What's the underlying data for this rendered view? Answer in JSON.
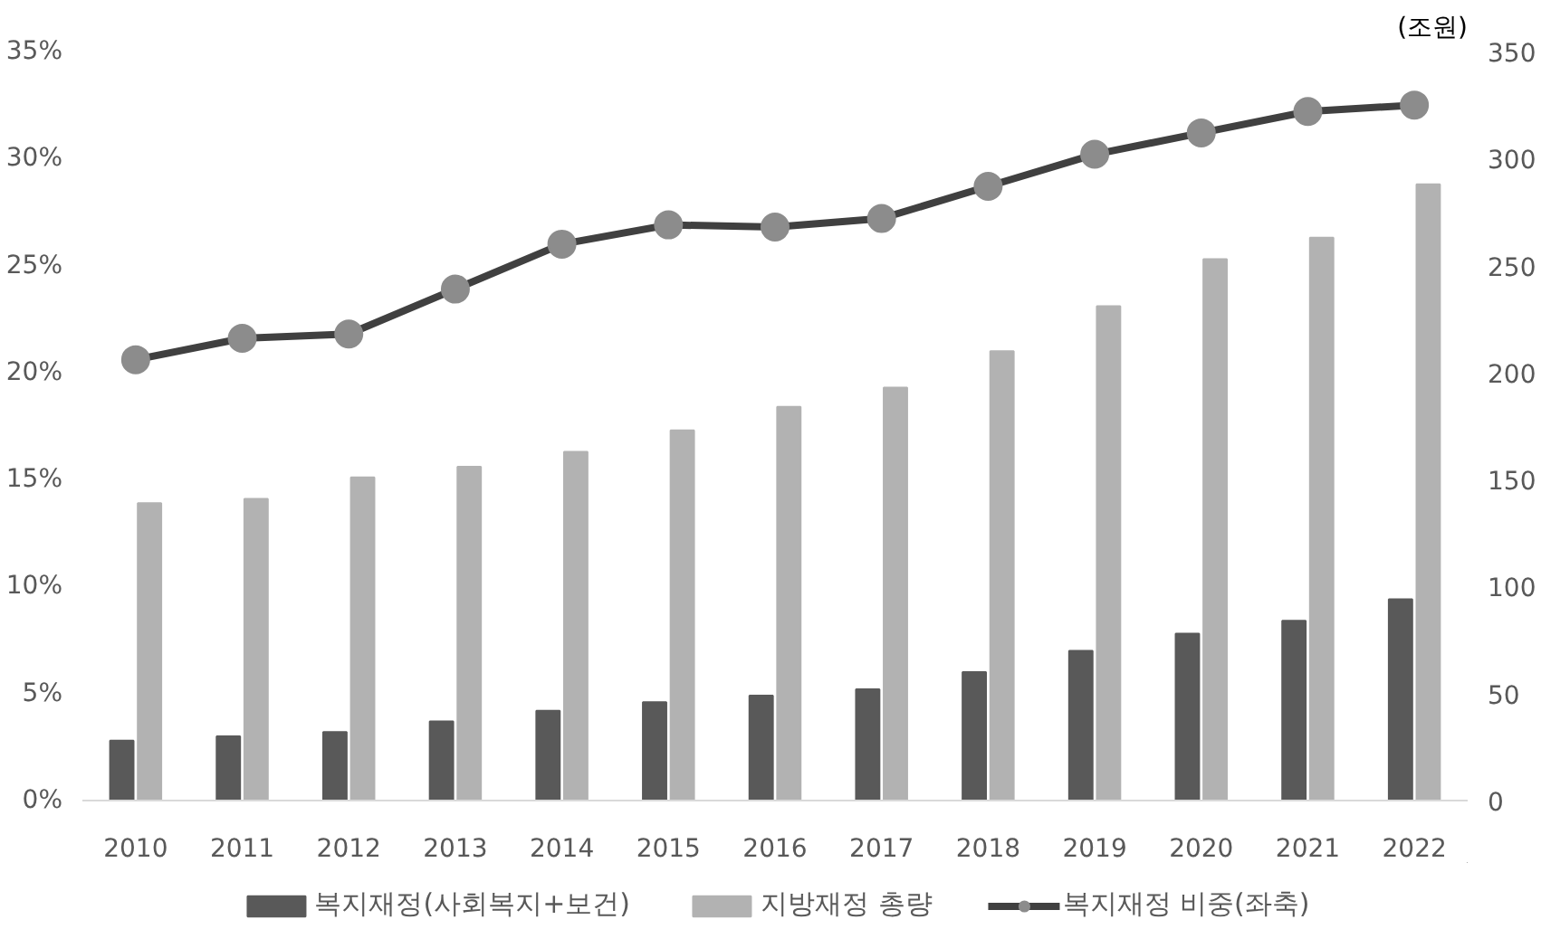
{
  "chart_data": {
    "type": "bar",
    "categories": [
      "2010",
      "2011",
      "2012",
      "2013",
      "2014",
      "2015",
      "2016",
      "2017",
      "2018",
      "2019",
      "2020",
      "2021",
      "2022"
    ],
    "y2label": "(조원)",
    "ylim": [
      0,
      35
    ],
    "yticks": [
      {
        "value": 0,
        "label": "0%"
      },
      {
        "value": 5,
        "label": "5%"
      },
      {
        "value": 10,
        "label": "10%"
      },
      {
        "value": 15,
        "label": "15%"
      },
      {
        "value": 20,
        "label": "20%"
      },
      {
        "value": 25,
        "label": "25%"
      },
      {
        "value": 30,
        "label": "30%"
      },
      {
        "value": 35,
        "label": "35%"
      }
    ],
    "y2lim": [
      0,
      350
    ],
    "y2ticks": [
      0,
      50,
      100,
      150,
      200,
      250,
      300,
      350
    ],
    "legend": "bottom",
    "marker": "circle",
    "series": [
      {
        "name": "복지재정(사회복지+보건)",
        "color": "#595959",
        "axis": "y2",
        "values": [
          28,
          30,
          32,
          37,
          42,
          46,
          49,
          52,
          60,
          70,
          78,
          84,
          94
        ]
      },
      {
        "name": "지방재정 총량",
        "color": "#b2b2b2",
        "axis": "y2",
        "values": [
          139,
          141,
          151,
          156,
          163,
          173,
          184,
          193,
          210,
          231,
          253,
          263,
          288
        ]
      },
      {
        "name": "복지재정 비중(좌축)",
        "type": "line",
        "color": "#404040",
        "values": [
          20.6,
          21.6,
          21.8,
          23.9,
          26.0,
          26.9,
          26.8,
          27.2,
          28.7,
          30.2,
          31.2,
          32.2,
          32.5
        ]
      }
    ]
  }
}
